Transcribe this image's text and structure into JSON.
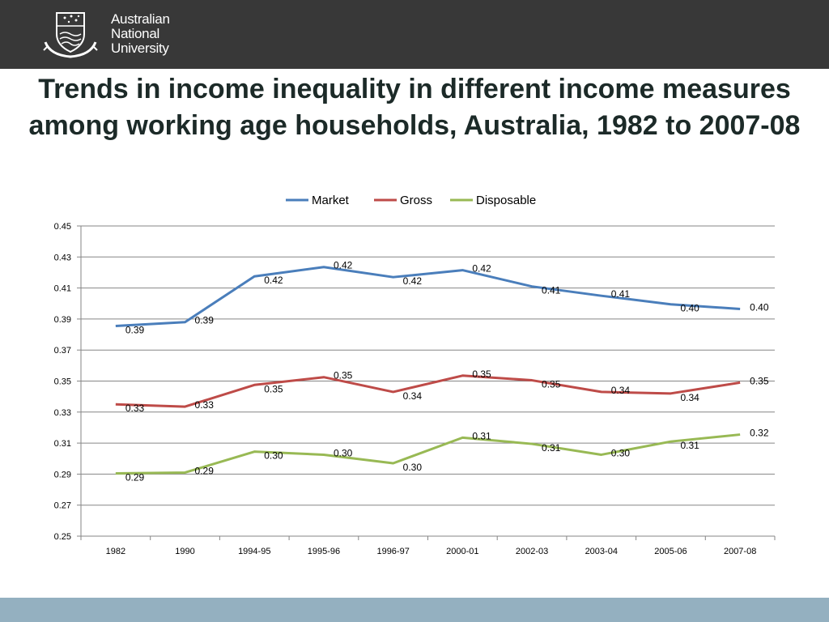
{
  "header": {
    "logo_lines": [
      "Australian",
      "National",
      "University"
    ]
  },
  "slide": {
    "title": "Trends in income inequality in different income measures among working age households, Australia, 1982 to 2007-08"
  },
  "colors": {
    "header_background": "#383838",
    "footer_background": "#94b0c0",
    "market": "#4a7ebb",
    "gross": "#be4b48",
    "disposable": "#98b954",
    "gridline": "#868686"
  },
  "chart_data": {
    "type": "line",
    "title": "",
    "xlabel": "",
    "ylabel": "",
    "ylim": [
      0.25,
      0.45
    ],
    "yticks": [
      "0.25",
      "0.27",
      "0.29",
      "0.31",
      "0.33",
      "0.35",
      "0.37",
      "0.39",
      "0.41",
      "0.43",
      "0.45"
    ],
    "grid": true,
    "legend_position": "top-center",
    "categories": [
      "1982",
      "1990",
      "1994-95",
      "1995-96",
      "1996-97",
      "2000-01",
      "2002-03",
      "2003-04",
      "2005-06",
      "2007-08"
    ],
    "series": [
      {
        "name": "Market",
        "color": "#4a7ebb",
        "values": [
          0.3855,
          0.388,
          0.4175,
          0.4235,
          0.417,
          0.4215,
          0.411,
          0.405,
          0.3995,
          0.3965
        ],
        "labels": [
          "0.39",
          "0.39",
          "0.42",
          "0.42",
          "0.42",
          "0.42",
          "0.41",
          "0.41",
          "0.40",
          "0.40"
        ]
      },
      {
        "name": "Gross",
        "color": "#be4b48",
        "values": [
          0.335,
          0.3335,
          0.3475,
          0.3525,
          0.343,
          0.3535,
          0.3505,
          0.343,
          0.342,
          0.349
        ],
        "labels": [
          "0.33",
          "0.33",
          "0.35",
          "0.35",
          "0.34",
          "0.35",
          "0.35",
          "0.34",
          "0.34",
          "0.35"
        ]
      },
      {
        "name": "Disposable",
        "color": "#98b954",
        "values": [
          0.2905,
          0.291,
          0.3045,
          0.3025,
          0.297,
          0.3135,
          0.3095,
          0.3025,
          0.311,
          0.3155
        ],
        "labels": [
          "0.29",
          "0.29",
          "0.30",
          "0.30",
          "0.30",
          "0.31",
          "0.31",
          "0.30",
          "0.31",
          "0.32"
        ]
      }
    ]
  }
}
